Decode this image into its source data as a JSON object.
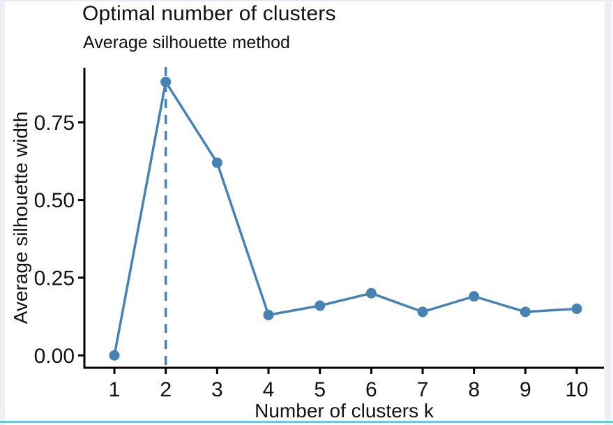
{
  "window": {
    "top_line_color": "#e7eaf0",
    "left_strip_color": "#eef0f8",
    "right_strip_color": "#e9f1f8",
    "bottom_border_color": "#52d5de"
  },
  "chart_data": {
    "type": "line",
    "title": "Optimal number of clusters",
    "subtitle": "Average silhouette method",
    "xlabel": "Number of clusters k",
    "ylabel": "Average silhouette width",
    "categories": [
      "1",
      "2",
      "3",
      "4",
      "5",
      "6",
      "7",
      "8",
      "9",
      "10"
    ],
    "x": [
      1,
      2,
      3,
      4,
      5,
      6,
      7,
      8,
      9,
      10
    ],
    "values": [
      0.0,
      0.88,
      0.62,
      0.13,
      0.16,
      0.2,
      0.14,
      0.19,
      0.14,
      0.15
    ],
    "y_ticks": [
      {
        "value": 0.0,
        "label": "0.00"
      },
      {
        "value": 0.25,
        "label": "0.25"
      },
      {
        "value": 0.5,
        "label": "0.50"
      },
      {
        "value": 0.75,
        "label": "0.75"
      }
    ],
    "ylim": [
      0,
      0.93
    ],
    "optimal_k": 2,
    "vline_at_x": 2,
    "vline_style": "dashed",
    "line_color": "#4682b4",
    "point_color": "#4682b4",
    "axis_color": "#000000",
    "grid": false,
    "legend_position": "none",
    "marker": "circle"
  }
}
